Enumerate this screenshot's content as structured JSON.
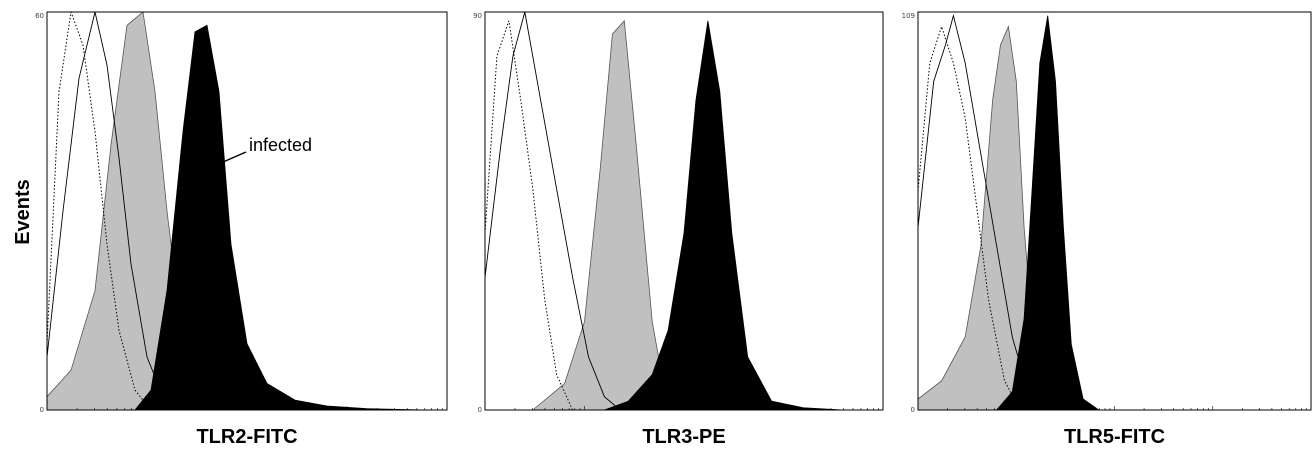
{
  "figure": {
    "ylabel": "Events"
  },
  "annotation": {
    "text": "infected"
  },
  "colors": {
    "gray_fill": "#c0c0c0",
    "black_fill": "#000000",
    "outline": "#000000"
  },
  "chart_data": [
    {
      "type": "area",
      "title": "",
      "xlabel": "TLR2-FITC",
      "ylabel": "Events",
      "xscale": "log",
      "xlim": [
        0,
        1
      ],
      "ylim": [
        0,
        60
      ],
      "y_ticks": [
        "60",
        "0"
      ],
      "grid": false,
      "series": [
        {
          "style": "dotted-outline",
          "x": [
            0.0,
            0.03,
            0.06,
            0.09,
            0.12,
            0.15,
            0.18,
            0.22,
            0.26
          ],
          "values": [
            10,
            48,
            60,
            55,
            42,
            25,
            12,
            3,
            0
          ]
        },
        {
          "style": "solid-outline",
          "x": [
            0.0,
            0.04,
            0.08,
            0.12,
            0.15,
            0.18,
            0.21,
            0.25,
            0.29,
            0.34
          ],
          "values": [
            8,
            30,
            50,
            60,
            52,
            38,
            22,
            8,
            2,
            0
          ]
        },
        {
          "style": "gray-fill",
          "x": [
            0.0,
            0.06,
            0.12,
            0.16,
            0.2,
            0.24,
            0.27,
            0.3,
            0.33,
            0.37,
            0.42
          ],
          "values": [
            2,
            6,
            18,
            40,
            58,
            60,
            48,
            30,
            15,
            4,
            0
          ]
        },
        {
          "style": "black-fill",
          "x": [
            0.22,
            0.26,
            0.3,
            0.34,
            0.37,
            0.4,
            0.43,
            0.46,
            0.5,
            0.55,
            0.62,
            0.7,
            0.8,
            0.95
          ],
          "values": [
            0,
            3,
            18,
            42,
            57,
            58,
            48,
            25,
            10,
            4,
            1.5,
            0.6,
            0.2,
            0
          ]
        }
      ]
    },
    {
      "type": "area",
      "title": "",
      "xlabel": "TLR3-PE",
      "ylabel": "Events",
      "xscale": "log",
      "xlim": [
        0,
        1
      ],
      "ylim": [
        0,
        90
      ],
      "y_ticks": [
        "90",
        "0"
      ],
      "grid": false,
      "series": [
        {
          "style": "dotted-outline",
          "x": [
            0.0,
            0.03,
            0.06,
            0.09,
            0.12,
            0.15,
            0.18,
            0.22
          ],
          "values": [
            40,
            80,
            88,
            70,
            50,
            25,
            8,
            0
          ]
        },
        {
          "style": "solid-outline",
          "x": [
            0.0,
            0.04,
            0.07,
            0.1,
            0.14,
            0.18,
            0.22,
            0.26,
            0.3,
            0.34
          ],
          "values": [
            30,
            60,
            80,
            90,
            70,
            50,
            30,
            12,
            3,
            0
          ]
        },
        {
          "style": "gray-fill",
          "x": [
            0.12,
            0.2,
            0.25,
            0.29,
            0.32,
            0.35,
            0.38,
            0.42,
            0.46
          ],
          "values": [
            0,
            6,
            20,
            55,
            85,
            88,
            60,
            20,
            0
          ]
        },
        {
          "style": "black-fill",
          "x": [
            0.3,
            0.36,
            0.42,
            0.46,
            0.5,
            0.53,
            0.56,
            0.59,
            0.62,
            0.66,
            0.72,
            0.8,
            0.9
          ],
          "values": [
            0,
            2,
            8,
            18,
            40,
            70,
            88,
            72,
            40,
            12,
            2,
            0.5,
            0
          ]
        }
      ]
    },
    {
      "type": "area",
      "title": "",
      "xlabel": "TLR5-FITC",
      "ylabel": "Events",
      "xscale": "log",
      "xlim": [
        0,
        1
      ],
      "ylim": [
        0,
        109
      ],
      "y_ticks": [
        "109",
        "0"
      ],
      "grid": false,
      "series": [
        {
          "style": "dotted-outline",
          "x": [
            0.0,
            0.03,
            0.06,
            0.09,
            0.12,
            0.15,
            0.18,
            0.22,
            0.26
          ],
          "values": [
            60,
            95,
            105,
            95,
            80,
            55,
            30,
            8,
            0
          ]
        },
        {
          "style": "solid-outline",
          "x": [
            0.0,
            0.04,
            0.07,
            0.09,
            0.12,
            0.16,
            0.2,
            0.24,
            0.28,
            0.32
          ],
          "values": [
            50,
            90,
            100,
            108,
            95,
            70,
            45,
            20,
            5,
            0
          ]
        },
        {
          "style": "gray-fill",
          "x": [
            0.0,
            0.06,
            0.12,
            0.16,
            0.19,
            0.21,
            0.23,
            0.25,
            0.27,
            0.3,
            0.33
          ],
          "values": [
            3,
            8,
            20,
            45,
            85,
            100,
            105,
            90,
            50,
            10,
            0
          ]
        },
        {
          "style": "black-fill",
          "x": [
            0.2,
            0.24,
            0.27,
            0.29,
            0.31,
            0.33,
            0.35,
            0.37,
            0.39,
            0.42,
            0.46
          ],
          "values": [
            0,
            5,
            25,
            60,
            95,
            108,
            90,
            50,
            18,
            3,
            0
          ]
        }
      ]
    }
  ]
}
